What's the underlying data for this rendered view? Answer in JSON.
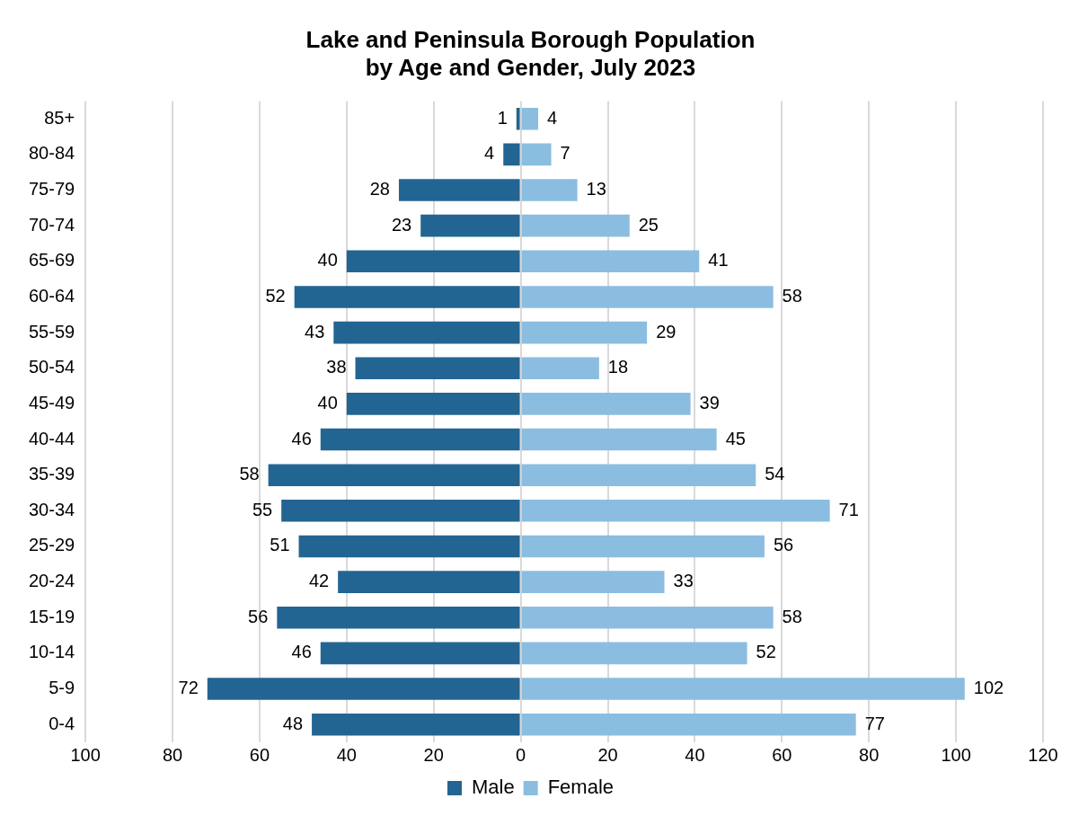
{
  "chart_data": {
    "type": "bar",
    "orientation": "horizontal",
    "title": "Lake and Peninsula Borough Population\nby Age and Gender, July 2023",
    "categories": [
      "85+",
      "80-84",
      "75-79",
      "70-74",
      "65-69",
      "60-64",
      "55-59",
      "50-54",
      "45-49",
      "40-44",
      "35-39",
      "30-34",
      "25-29",
      "20-24",
      "15-19",
      "10-14",
      "5-9",
      "0-4"
    ],
    "series": [
      {
        "name": "Male",
        "color": "#236592",
        "values": [
          1,
          4,
          28,
          23,
          40,
          52,
          43,
          38,
          40,
          46,
          58,
          55,
          51,
          42,
          56,
          46,
          72,
          48
        ],
        "base": [
          -1,
          -4,
          -28,
          -23,
          -40,
          -52,
          -43,
          -38,
          -40,
          -46,
          -58,
          -55,
          -51,
          -42,
          -56,
          -46,
          -72,
          -48
        ]
      },
      {
        "name": "Female",
        "color": "#8bbde1",
        "values": [
          4,
          7,
          13,
          25,
          41,
          58,
          29,
          18,
          39,
          45,
          54,
          71,
          56,
          33,
          58,
          52,
          102,
          77
        ]
      }
    ],
    "data_labels": true,
    "xlim": [
      -100,
      120
    ],
    "xticks": [
      {
        "value": -100,
        "label": "100"
      },
      {
        "value": -80,
        "label": "80"
      },
      {
        "value": -60,
        "label": "60"
      },
      {
        "value": -40,
        "label": "40"
      },
      {
        "value": -20,
        "label": "20"
      },
      0,
      20,
      40,
      60,
      80,
      100,
      120
    ],
    "grid": "x",
    "legend": "bottom"
  }
}
